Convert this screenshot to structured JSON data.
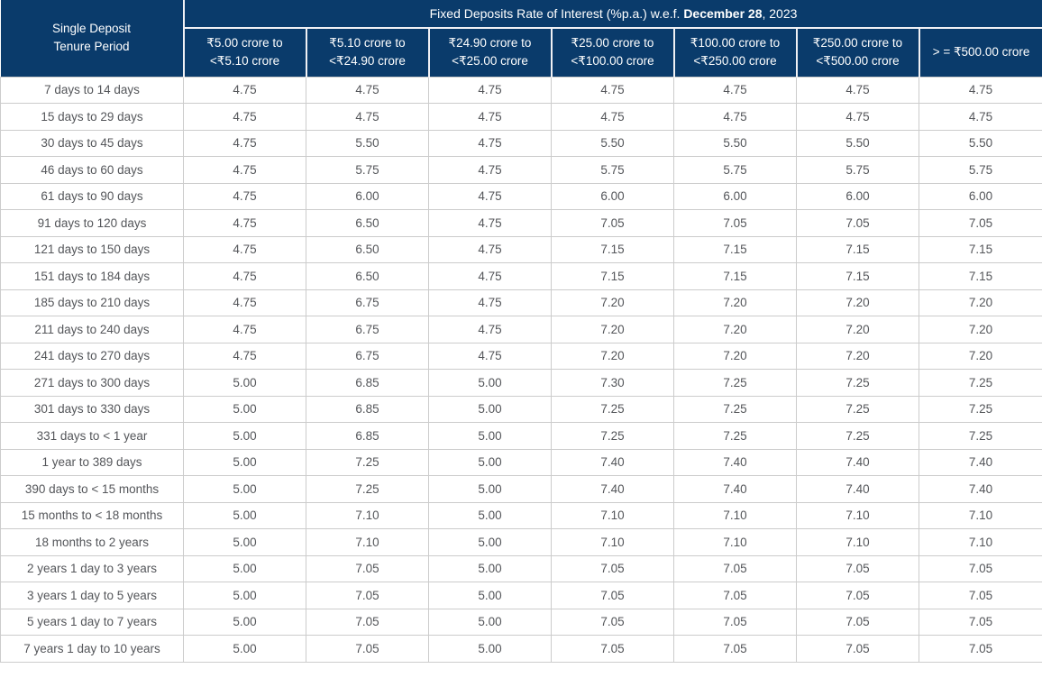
{
  "header": {
    "title_prefix": "Fixed Deposits Rate of Interest (%p.a.) w.e.f. ",
    "title_bold": "December 28",
    "title_suffix": ", 2023"
  },
  "corner": {
    "line1": "Single Deposit",
    "line2": "Tenure Period"
  },
  "columns": [
    "₹5.00 crore to <₹5.10 crore",
    "₹5.10 crore to <₹24.90 crore",
    "₹24.90 crore to <₹25.00 crore",
    "₹25.00 crore to <₹100.00 crore",
    "₹100.00 crore to <₹250.00 crore",
    "₹250.00 crore to <₹500.00 crore",
    "> = ₹500.00 crore"
  ],
  "rows": [
    {
      "tenure": "7 days to 14 days",
      "rates": [
        "4.75",
        "4.75",
        "4.75",
        "4.75",
        "4.75",
        "4.75",
        "4.75"
      ]
    },
    {
      "tenure": "15 days to 29 days",
      "rates": [
        "4.75",
        "4.75",
        "4.75",
        "4.75",
        "4.75",
        "4.75",
        "4.75"
      ]
    },
    {
      "tenure": "30 days to 45 days",
      "rates": [
        "4.75",
        "5.50",
        "4.75",
        "5.50",
        "5.50",
        "5.50",
        "5.50"
      ]
    },
    {
      "tenure": "46 days to 60 days",
      "rates": [
        "4.75",
        "5.75",
        "4.75",
        "5.75",
        "5.75",
        "5.75",
        "5.75"
      ]
    },
    {
      "tenure": "61 days to 90 days",
      "rates": [
        "4.75",
        "6.00",
        "4.75",
        "6.00",
        "6.00",
        "6.00",
        "6.00"
      ]
    },
    {
      "tenure": "91 days to 120 days",
      "rates": [
        "4.75",
        "6.50",
        "4.75",
        "7.05",
        "7.05",
        "7.05",
        "7.05"
      ]
    },
    {
      "tenure": "121 days to 150 days",
      "rates": [
        "4.75",
        "6.50",
        "4.75",
        "7.15",
        "7.15",
        "7.15",
        "7.15"
      ]
    },
    {
      "tenure": "151 days to 184 days",
      "rates": [
        "4.75",
        "6.50",
        "4.75",
        "7.15",
        "7.15",
        "7.15",
        "7.15"
      ]
    },
    {
      "tenure": "185 days to 210 days",
      "rates": [
        "4.75",
        "6.75",
        "4.75",
        "7.20",
        "7.20",
        "7.20",
        "7.20"
      ]
    },
    {
      "tenure": "211 days to 240 days",
      "rates": [
        "4.75",
        "6.75",
        "4.75",
        "7.20",
        "7.20",
        "7.20",
        "7.20"
      ]
    },
    {
      "tenure": "241 days to 270 days",
      "rates": [
        "4.75",
        "6.75",
        "4.75",
        "7.20",
        "7.20",
        "7.20",
        "7.20"
      ]
    },
    {
      "tenure": "271 days to 300 days",
      "rates": [
        "5.00",
        "6.85",
        "5.00",
        "7.30",
        "7.25",
        "7.25",
        "7.25"
      ]
    },
    {
      "tenure": "301 days to 330 days",
      "rates": [
        "5.00",
        "6.85",
        "5.00",
        "7.25",
        "7.25",
        "7.25",
        "7.25"
      ]
    },
    {
      "tenure": "331 days to < 1 year",
      "rates": [
        "5.00",
        "6.85",
        "5.00",
        "7.25",
        "7.25",
        "7.25",
        "7.25"
      ]
    },
    {
      "tenure": "1 year to 389 days",
      "rates": [
        "5.00",
        "7.25",
        "5.00",
        "7.40",
        "7.40",
        "7.40",
        "7.40"
      ]
    },
    {
      "tenure": "390 days to < 15 months",
      "rates": [
        "5.00",
        "7.25",
        "5.00",
        "7.40",
        "7.40",
        "7.40",
        "7.40"
      ]
    },
    {
      "tenure": "15 months to < 18 months",
      "rates": [
        "5.00",
        "7.10",
        "5.00",
        "7.10",
        "7.10",
        "7.10",
        "7.10"
      ]
    },
    {
      "tenure": "18 months to 2 years",
      "rates": [
        "5.00",
        "7.10",
        "5.00",
        "7.10",
        "7.10",
        "7.10",
        "7.10"
      ]
    },
    {
      "tenure": "2 years 1 day to 3 years",
      "rates": [
        "5.00",
        "7.05",
        "5.00",
        "7.05",
        "7.05",
        "7.05",
        "7.05"
      ]
    },
    {
      "tenure": "3 years 1 day to 5 years",
      "rates": [
        "5.00",
        "7.05",
        "5.00",
        "7.05",
        "7.05",
        "7.05",
        "7.05"
      ]
    },
    {
      "tenure": "5 years 1 day to 7 years",
      "rates": [
        "5.00",
        "7.05",
        "5.00",
        "7.05",
        "7.05",
        "7.05",
        "7.05"
      ]
    },
    {
      "tenure": "7 years 1 day to 10 years",
      "rates": [
        "5.00",
        "7.05",
        "5.00",
        "7.05",
        "7.05",
        "7.05",
        "7.05"
      ]
    }
  ],
  "colors": {
    "header_bg": "#0a3b6b",
    "header_text": "#ffffff",
    "body_text": "#54565a",
    "grid_border": "#cccccc",
    "header_divider": "#f0f0f4",
    "row_bg": "#ffffff"
  }
}
